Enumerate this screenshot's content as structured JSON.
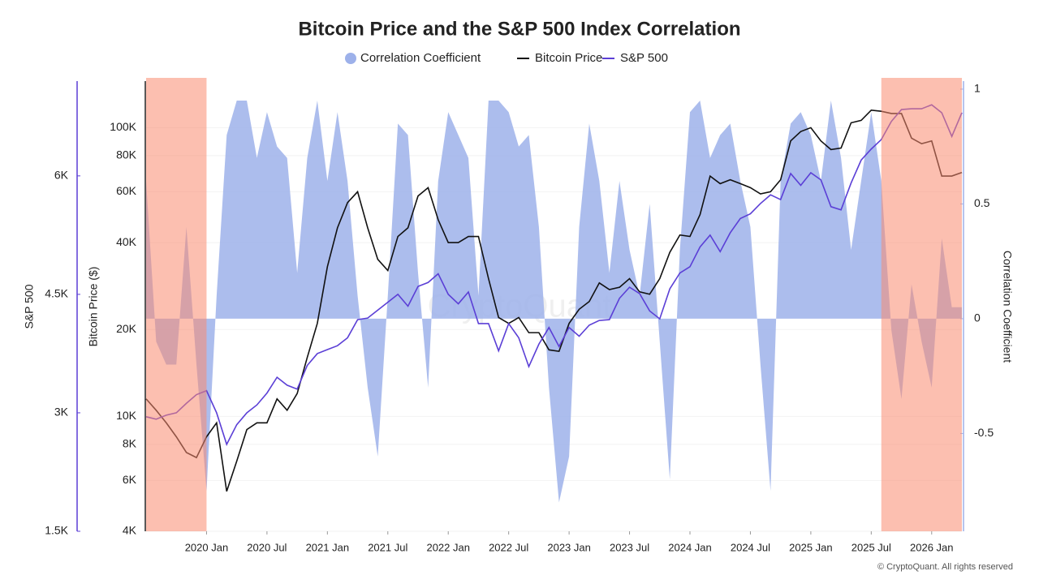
{
  "chart_data": {
    "type": "multi-axis-line",
    "title": "Bitcoin Price and the S&P 500 Index Correlation",
    "watermark": "CryptoQuant",
    "footer": "© CryptoQuant. All rights reserved",
    "x": [
      "2019-07",
      "2019-08",
      "2019-09",
      "2019-10",
      "2019-11",
      "2019-12",
      "2020-01",
      "2020-02",
      "2020-03",
      "2020-04",
      "2020-05",
      "2020-06",
      "2020-07",
      "2020-08",
      "2020-09",
      "2020-10",
      "2020-11",
      "2020-12",
      "2021-01",
      "2021-02",
      "2021-03",
      "2021-04",
      "2021-05",
      "2021-06",
      "2021-07",
      "2021-08",
      "2021-09",
      "2021-10",
      "2021-11",
      "2021-12",
      "2022-01",
      "2022-02",
      "2022-03",
      "2022-04",
      "2022-05",
      "2022-06",
      "2022-07",
      "2022-08",
      "2022-09",
      "2022-10",
      "2022-11",
      "2022-12",
      "2023-01",
      "2023-02",
      "2023-03",
      "2023-04",
      "2023-05",
      "2023-06",
      "2023-07",
      "2023-08",
      "2023-09",
      "2023-10",
      "2023-11",
      "2023-12",
      "2024-01",
      "2024-02",
      "2024-03",
      "2024-04",
      "2024-05",
      "2024-06",
      "2024-07",
      "2024-08",
      "2024-09",
      "2024-10",
      "2024-11",
      "2024-12",
      "2025-01",
      "2025-02",
      "2025-03",
      "2025-04",
      "2025-05",
      "2025-06",
      "2025-07",
      "2025-08",
      "2025-09",
      "2025-10",
      "2025-11",
      "2025-12",
      "2026-01",
      "2026-02",
      "2026-03",
      "2026-04"
    ],
    "xticks": [
      {
        "value": "2020-01",
        "label": "2020 Jan"
      },
      {
        "value": "2020-07",
        "label": "2020 Jul"
      },
      {
        "value": "2021-01",
        "label": "2021 Jan"
      },
      {
        "value": "2021-07",
        "label": "2021 Jul"
      },
      {
        "value": "2022-01",
        "label": "2022 Jan"
      },
      {
        "value": "2022-07",
        "label": "2022 Jul"
      },
      {
        "value": "2023-01",
        "label": "2023 Jan"
      },
      {
        "value": "2023-07",
        "label": "2023 Jul"
      },
      {
        "value": "2024-01",
        "label": "2024 Jan"
      },
      {
        "value": "2024-07",
        "label": "2024 Jul"
      },
      {
        "value": "2025-01",
        "label": "2025 Jan"
      },
      {
        "value": "2025-07",
        "label": "2025 Jul"
      },
      {
        "value": "2026-01",
        "label": "2026 Jan"
      }
    ],
    "ylabel": "S&P 500",
    "ylim": [
      1500,
      7200
    ],
    "yticks": [
      {
        "value": 1500,
        "label": "1.5K"
      },
      {
        "value": 3000,
        "label": "3K"
      },
      {
        "value": 4500,
        "label": "4.5K"
      },
      {
        "value": 6000,
        "label": "6K"
      }
    ],
    "y2label": "Bitcoin Price ($)",
    "y2lim": [
      4000,
      145000
    ],
    "y2log": true,
    "y2ticks": [
      {
        "value": 4000,
        "label": "4K"
      },
      {
        "value": 6000,
        "label": "6K"
      },
      {
        "value": 8000,
        "label": "8K"
      },
      {
        "value": 10000,
        "label": "10K"
      },
      {
        "value": 20000,
        "label": "20K"
      },
      {
        "value": 40000,
        "label": "40K"
      },
      {
        "value": 60000,
        "label": "60K"
      },
      {
        "value": 80000,
        "label": "80K"
      },
      {
        "value": 100000,
        "label": "100K"
      }
    ],
    "y3label": "Correlation Coefficient",
    "y3lim": [
      -0.926,
      1.035
    ],
    "y3ticks": [
      1,
      0.5,
      0,
      -0.5
    ],
    "highlight_ranges": [
      [
        "2019-07",
        "2020-01"
      ],
      [
        "2025-08",
        "2026-04"
      ]
    ],
    "highlight_color": "#f98a6f",
    "series": [
      {
        "name": "Correlation Coefficient",
        "kind": "area",
        "axis": "y3",
        "color": "#9db1ea",
        "values": [
          0.6,
          -0.1,
          -0.2,
          -0.2,
          0.4,
          -0.2,
          -0.75,
          0.1,
          0.8,
          0.95,
          0.95,
          0.7,
          0.9,
          0.75,
          0.7,
          0.2,
          0.7,
          0.95,
          0.6,
          0.9,
          0.6,
          0.1,
          -0.3,
          -0.6,
          0.1,
          0.85,
          0.8,
          0.2,
          -0.3,
          0.6,
          0.9,
          0.8,
          0.7,
          0.1,
          0.95,
          0.95,
          0.9,
          0.75,
          0.8,
          0.4,
          -0.3,
          -0.8,
          -0.6,
          0.4,
          0.85,
          0.6,
          0.2,
          0.6,
          0.3,
          0.1,
          0.5,
          -0.1,
          -0.7,
          0.3,
          0.9,
          0.95,
          0.7,
          0.8,
          0.85,
          0.6,
          0.4,
          -0.2,
          -0.75,
          0.6,
          0.85,
          0.9,
          0.8,
          0.6,
          0.95,
          0.7,
          0.3,
          0.6,
          0.9,
          0.6,
          -0.05,
          -0.35,
          0.15,
          -0.1,
          -0.3,
          0.35,
          0.05,
          0.05
        ]
      },
      {
        "name": "Bitcoin Price",
        "kind": "line",
        "axis": "y2",
        "color": "#111111",
        "values": [
          11500,
          10500,
          9500,
          8500,
          7500,
          7200,
          8500,
          9500,
          5500,
          7000,
          9000,
          9500,
          9500,
          11500,
          10500,
          12000,
          16000,
          21000,
          33000,
          45000,
          55000,
          60000,
          45000,
          35000,
          32000,
          42000,
          45000,
          58000,
          62000,
          48000,
          40000,
          40000,
          42000,
          42000,
          30000,
          22000,
          21000,
          22000,
          19500,
          19500,
          17000,
          16800,
          21000,
          23500,
          25000,
          29000,
          27500,
          28000,
          30000,
          27000,
          26500,
          30000,
          37000,
          42500,
          42000,
          50000,
          68000,
          64000,
          66000,
          64000,
          62000,
          59000,
          60000,
          66000,
          90000,
          97000,
          100000,
          90000,
          84000,
          85000,
          104000,
          106000,
          115000,
          114000,
          112000,
          112000,
          92000,
          88000,
          90000,
          68000,
          68000,
          70000
        ]
      },
      {
        "name": "S&P 500",
        "kind": "line",
        "axis": "y",
        "color": "#5b3fd6",
        "values": [
          2950,
          2920,
          2970,
          3000,
          3120,
          3230,
          3280,
          3000,
          2600,
          2850,
          3000,
          3100,
          3250,
          3450,
          3350,
          3300,
          3600,
          3750,
          3800,
          3850,
          3950,
          4180,
          4200,
          4300,
          4400,
          4500,
          4350,
          4600,
          4650,
          4760,
          4500,
          4380,
          4530,
          4130,
          4130,
          3785,
          4130,
          3950,
          3585,
          3870,
          4080,
          3840,
          4080,
          3970,
          4110,
          4170,
          4180,
          4450,
          4590,
          4510,
          4290,
          4190,
          4570,
          4770,
          4850,
          5100,
          5250,
          5040,
          5280,
          5460,
          5520,
          5650,
          5760,
          5700,
          6030,
          5880,
          6040,
          5950,
          5610,
          5570,
          5910,
          6200,
          6340,
          6460,
          6690,
          6840,
          6850,
          6850,
          6900,
          6800,
          6500,
          6800
        ]
      }
    ]
  }
}
